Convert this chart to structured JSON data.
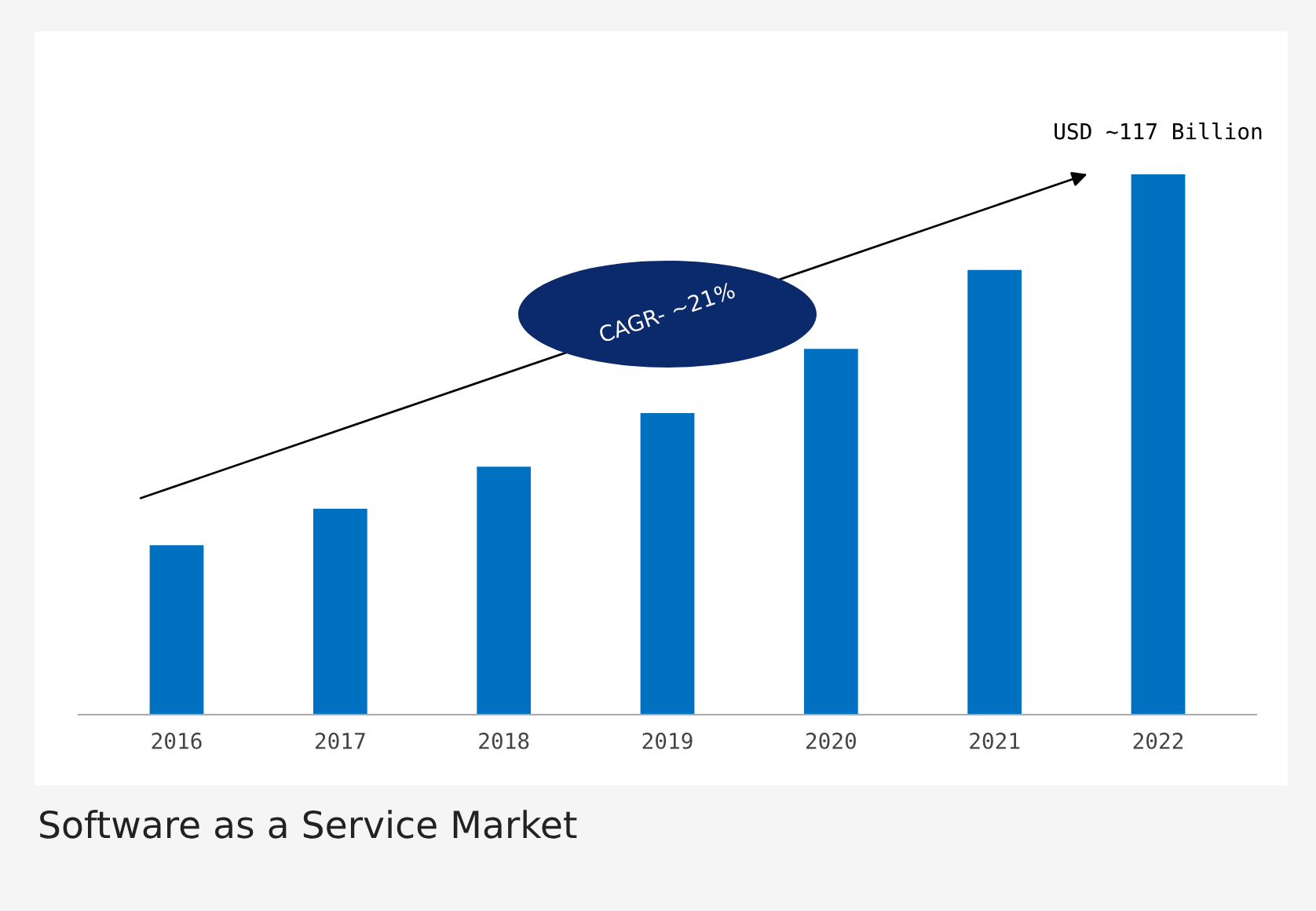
{
  "chart_data": {
    "type": "bar",
    "categories": [
      "2016",
      "2017",
      "2018",
      "2019",
      "2020",
      "2021",
      "2022"
    ],
    "values": [
      36.7,
      44.6,
      53.7,
      65.3,
      79.2,
      96.3,
      117
    ],
    "color": "#0070c0",
    "value_labels": [
      null,
      null,
      null,
      null,
      null,
      null,
      "USD ~117 Billion"
    ],
    "annotations": [
      "CAGR- ~21%",
      "Software as a Service Market"
    ],
    "grid": false,
    "legend": false
  }
}
